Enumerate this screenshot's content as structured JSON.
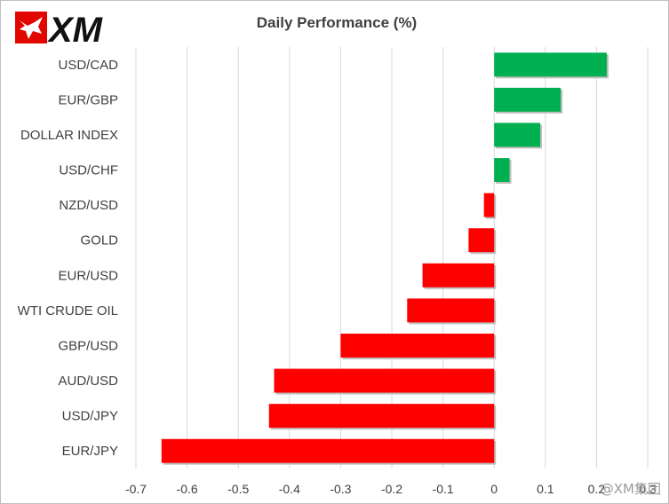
{
  "brand": {
    "logo_text": "XM",
    "logo_color": "#e10600",
    "watermark": "@XM集团"
  },
  "chart_data": {
    "type": "bar",
    "orientation": "horizontal",
    "title": "Daily Performance (%)",
    "categories": [
      "USD/CAD",
      "EUR/GBP",
      "DOLLAR INDEX",
      "USD/CHF",
      "NZD/USD",
      "GOLD",
      "EUR/USD",
      "WTI CRUDE OIL",
      "GBP/USD",
      "AUD/USD",
      "USD/JPY",
      "EUR/JPY"
    ],
    "values": [
      0.22,
      0.13,
      0.09,
      0.03,
      -0.02,
      -0.05,
      -0.14,
      -0.17,
      -0.3,
      -0.43,
      -0.44,
      -0.65
    ],
    "xlim": [
      -0.7,
      0.3
    ],
    "xticks": [
      -0.7,
      -0.6,
      -0.5,
      -0.4,
      -0.3,
      -0.2,
      -0.1,
      0,
      0.1,
      0.2,
      0.3
    ],
    "grid": "vertical",
    "legend": "none",
    "colors": {
      "positive": "#00b050",
      "negative": "#ff0000"
    }
  }
}
